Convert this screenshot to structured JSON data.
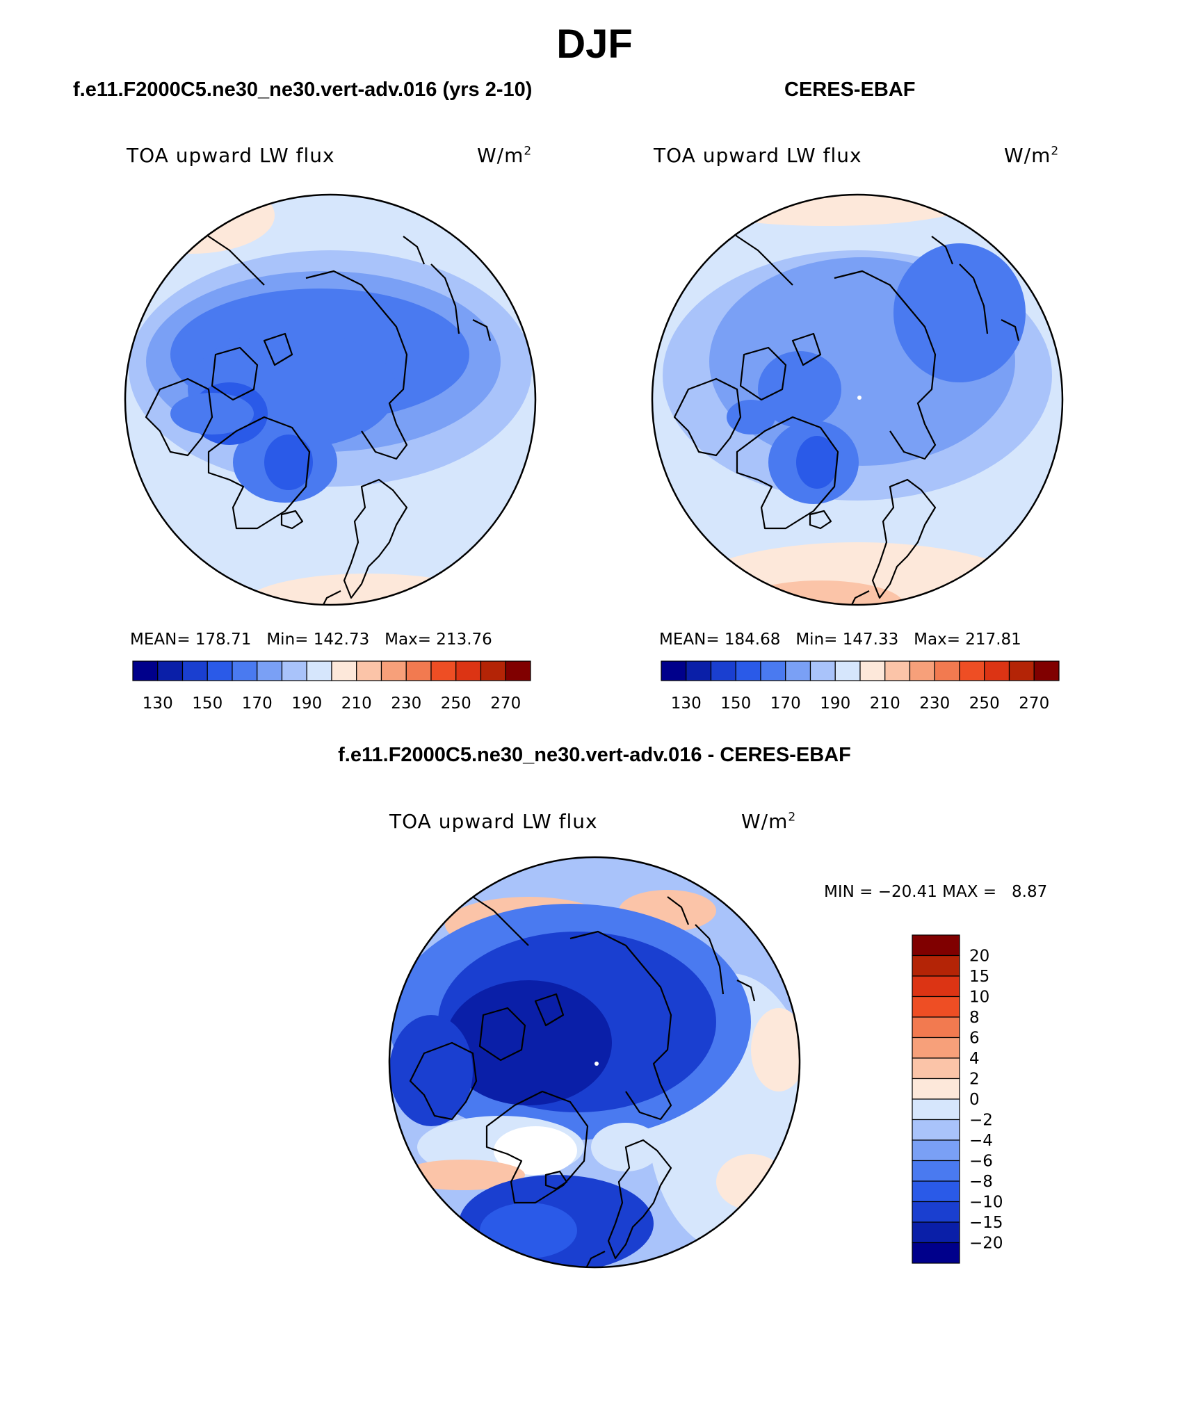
{
  "title": "DJF",
  "panels": [
    {
      "id": "model",
      "heading": "f.e11.F2000C5.ne30_ne30.vert-adv.016 (yrs 2-10)",
      "variable": "TOA upward LW flux",
      "units": "W/m",
      "units_exp": "2",
      "stats": {
        "mean_label": "MEAN=",
        "mean": "178.71",
        "min_label": "Min=",
        "min": "142.73",
        "max_label": "Max=",
        "max": "213.76"
      }
    },
    {
      "id": "obs",
      "heading": "CERES-EBAF",
      "variable": "TOA upward LW flux",
      "units": "W/m",
      "units_exp": "2",
      "stats": {
        "mean_label": "MEAN=",
        "mean": "184.68",
        "min_label": "Min=",
        "min": "147.33",
        "max_label": "Max=",
        "max": "217.81"
      }
    },
    {
      "id": "diff",
      "heading": "f.e11.F2000C5.ne30_ne30.vert-adv.016 - CERES-EBAF",
      "variable": "TOA upward LW flux",
      "units": "W/m",
      "units_exp": "2",
      "stats": {
        "min_label": "MIN =",
        "min": "−20.41",
        "max_label": "MAX =",
        "max": "8.87"
      }
    }
  ],
  "abs_colorbar": {
    "colors": [
      "#00008b",
      "#0a1fa8",
      "#1a3fd0",
      "#2a5ae8",
      "#4a7af0",
      "#7aa0f5",
      "#a9c3fa",
      "#d6e6fc",
      "#fde8da",
      "#fbc4a8",
      "#f7a07a",
      "#f27a50",
      "#ee4e24",
      "#dc3414",
      "#b42406",
      "#800000"
    ],
    "tick_labels": [
      "130",
      "150",
      "170",
      "190",
      "210",
      "230",
      "250",
      "270"
    ]
  },
  "diff_colorbar": {
    "colors": [
      "#00008b",
      "#0a1fa8",
      "#1a3fd0",
      "#2a5ae8",
      "#4a7af0",
      "#7aa0f5",
      "#a9c3fa",
      "#d6e6fc",
      "#fde8da",
      "#fbc4a8",
      "#f7a07a",
      "#f27a50",
      "#ee4e24",
      "#dc3414",
      "#b42406",
      "#800000"
    ],
    "tick_labels": [
      "20",
      "15",
      "10",
      "8",
      "6",
      "4",
      "2",
      "0",
      "−2",
      "−4",
      "−6",
      "−8",
      "−10",
      "−15",
      "−20"
    ]
  }
}
